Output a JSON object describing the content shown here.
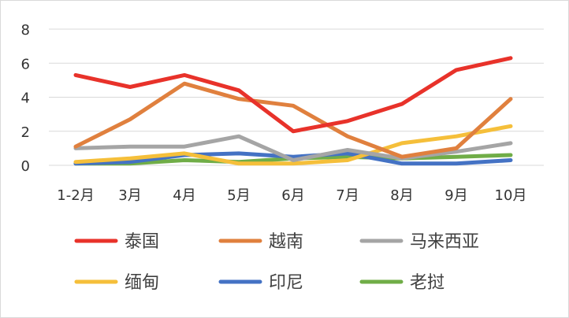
{
  "chart_data": {
    "type": "line",
    "categories": [
      "1-2月",
      "3月",
      "4月",
      "5月",
      "6月",
      "7月",
      "8月",
      "9月",
      "10月"
    ],
    "ylim": [
      0,
      8
    ],
    "yticks": [
      0,
      2,
      4,
      6,
      8
    ],
    "grid": true,
    "legend_position": "bottom",
    "series": [
      {
        "name": "泰国",
        "color": "#E8322A",
        "values": [
          5.3,
          4.6,
          5.3,
          4.4,
          2.0,
          2.6,
          3.6,
          5.6,
          6.3
        ]
      },
      {
        "name": "越南",
        "color": "#E0803E",
        "values": [
          1.1,
          2.7,
          4.8,
          3.9,
          3.5,
          1.7,
          0.5,
          1.0,
          3.9
        ]
      },
      {
        "name": "马来西亚",
        "color": "#A5A5A5",
        "values": [
          1.0,
          1.1,
          1.1,
          1.7,
          0.3,
          0.9,
          0.4,
          0.8,
          1.3
        ]
      },
      {
        "name": "缅甸",
        "color": "#F5BF3A",
        "values": [
          0.2,
          0.4,
          0.7,
          0.1,
          0.1,
          0.3,
          1.3,
          1.7,
          2.3
        ]
      },
      {
        "name": "印尼",
        "color": "#4472C4",
        "values": [
          0.1,
          0.2,
          0.6,
          0.7,
          0.5,
          0.7,
          0.1,
          0.1,
          0.3
        ]
      },
      {
        "name": "老挝",
        "color": "#70AD47",
        "values": [
          0.1,
          0.1,
          0.3,
          0.2,
          0.4,
          0.5,
          0.4,
          0.5,
          0.6
        ]
      }
    ]
  }
}
